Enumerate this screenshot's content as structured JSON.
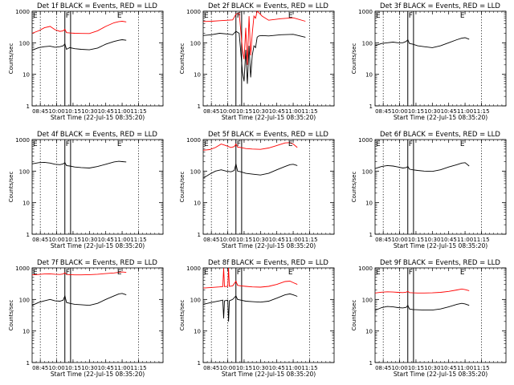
{
  "figure": {
    "ylabel": "Counts/sec",
    "xlabel": "Start Time (22-Jul-15 08:35:20)",
    "x_tick_labels": [
      "08:45",
      "10:00",
      "10:15",
      "10:30",
      "10:45",
      "11:00",
      "11:15"
    ],
    "y_tick_labels": [
      "1",
      "10",
      "100",
      "1000"
    ],
    "colors": {
      "events": "#000000",
      "lld": "#ff0000",
      "axes": "#000000"
    }
  },
  "chart_data": [
    {
      "type": "line",
      "title": "Det 1f BLACK = Events, RED = LLD",
      "xlabel": "Start Time (22-Jul-15 08:35:20)",
      "ylabel": "Counts/sec",
      "xlim": [
        0,
        160
      ],
      "ylim": [
        1,
        1000
      ],
      "yscale": "log",
      "x_ticks": [
        10,
        30,
        50,
        70,
        90,
        110,
        130
      ],
      "dotted_lines": [
        10,
        30,
        130
      ],
      "solid_lines": [
        40,
        47
      ],
      "markers": [
        {
          "label": "E",
          "x": 0
        },
        {
          "label": "F",
          "x": 40
        },
        {
          "label": "E",
          "x": 103
        }
      ],
      "series": [
        {
          "name": "Events",
          "color": "#000000",
          "x": [
            0,
            8,
            15,
            22,
            28,
            34,
            38,
            40,
            42,
            46,
            52,
            60,
            70,
            80,
            90,
            100,
            106,
            110,
            115
          ],
          "y": [
            58,
            70,
            75,
            78,
            72,
            75,
            80,
            92,
            62,
            70,
            65,
            62,
            60,
            68,
            90,
            110,
            120,
            125,
            120
          ]
        },
        {
          "name": "LLD",
          "color": "#ff0000",
          "x": [
            0,
            8,
            15,
            22,
            28,
            34,
            38,
            40,
            42,
            46,
            52,
            60,
            70,
            80,
            90,
            100,
            106,
            110,
            115
          ],
          "y": [
            200,
            240,
            300,
            330,
            260,
            230,
            240,
            270,
            210,
            205,
            200,
            198,
            196,
            240,
            330,
            430,
            470,
            480,
            460
          ]
        }
      ]
    },
    {
      "type": "line",
      "title": "Det 2f BLACK = Events, RED = LLD",
      "xlabel": "Start Time (22-Jul-15 08:35:20)",
      "ylabel": "Counts/sec",
      "xlim": [
        0,
        160
      ],
      "ylim": [
        1,
        1000
      ],
      "yscale": "log",
      "x_ticks": [
        10,
        30,
        50,
        70,
        90,
        110,
        130
      ],
      "dotted_lines": [
        10,
        30,
        130
      ],
      "solid_lines": [
        40,
        47
      ],
      "markers": [
        {
          "label": "E",
          "x": 0
        },
        {
          "label": "F",
          "x": 40
        },
        {
          "label": "E",
          "x": 103
        }
      ],
      "series": [
        {
          "name": "Events",
          "color": "#000000",
          "x": [
            0,
            10,
            20,
            30,
            36,
            40,
            44,
            48,
            50,
            52,
            54,
            56,
            58,
            60,
            62,
            64,
            66,
            68,
            72,
            80,
            95,
            110,
            125
          ],
          "y": [
            170,
            180,
            200,
            190,
            180,
            230,
            200,
            12,
            6,
            60,
            5,
            80,
            8,
            40,
            80,
            70,
            150,
            165,
            170,
            165,
            180,
            185,
            150
          ]
        },
        {
          "name": "LLD",
          "color": "#ff0000",
          "x": [
            0,
            10,
            20,
            30,
            36,
            40,
            44,
            48,
            50,
            52,
            54,
            56,
            58,
            60,
            62,
            64,
            66,
            68,
            72,
            80,
            95,
            110,
            125
          ],
          "y": [
            470,
            480,
            500,
            520,
            530,
            800,
            900,
            60,
            30,
            300,
            20,
            700,
            40,
            200,
            700,
            600,
            1000,
            900,
            700,
            520,
            580,
            620,
            480
          ]
        }
      ]
    },
    {
      "type": "line",
      "title": "Det 3f BLACK = Events, RED = LLD",
      "xlabel": "Start Time (22-Jul-15 08:35:20)",
      "ylabel": "Counts/sec",
      "xlim": [
        0,
        160
      ],
      "ylim": [
        1,
        1000
      ],
      "yscale": "log",
      "x_ticks": [
        10,
        30,
        50,
        70,
        90,
        110,
        130
      ],
      "dotted_lines": [
        10,
        30,
        130
      ],
      "solid_lines": [
        40,
        47
      ],
      "markers": [
        {
          "label": "E",
          "x": 0
        },
        {
          "label": "F",
          "x": 40
        },
        {
          "label": "E",
          "x": 103
        }
      ],
      "series": [
        {
          "name": "Events",
          "color": "#000000",
          "x": [
            0,
            8,
            15,
            22,
            28,
            34,
            38,
            40,
            42,
            46,
            52,
            60,
            70,
            80,
            90,
            100,
            106,
            110,
            115
          ],
          "y": [
            80,
            95,
            100,
            105,
            100,
            100,
            110,
            125,
            95,
            90,
            80,
            75,
            70,
            80,
            100,
            125,
            140,
            145,
            130
          ]
        }
      ]
    },
    {
      "type": "line",
      "title": "Det 4f BLACK = Events, RED = LLD",
      "xlabel": "Start Time (22-Jul-15 08:35:20)",
      "ylabel": "Counts/sec",
      "xlim": [
        0,
        160
      ],
      "ylim": [
        1,
        1000
      ],
      "yscale": "log",
      "x_ticks": [
        10,
        30,
        50,
        70,
        90,
        110,
        130
      ],
      "dotted_lines": [
        10,
        30,
        130
      ],
      "solid_lines": [
        40,
        47
      ],
      "markers": [
        {
          "label": "E",
          "x": 0
        },
        {
          "label": "F",
          "x": 40
        },
        {
          "label": "E",
          "x": 103
        }
      ],
      "series": [
        {
          "name": "Events",
          "color": "#000000",
          "x": [
            0,
            8,
            15,
            22,
            28,
            34,
            38,
            40,
            42,
            46,
            52,
            60,
            70,
            80,
            90,
            100,
            106,
            110,
            115
          ],
          "y": [
            170,
            185,
            190,
            180,
            165,
            160,
            170,
            185,
            150,
            145,
            135,
            130,
            125,
            140,
            165,
            195,
            205,
            200,
            195
          ]
        }
      ]
    },
    {
      "type": "line",
      "title": "Det 5f BLACK = Events, RED = LLD",
      "xlabel": "Start Time (22-Jul-15 08:35:20)",
      "ylabel": "Counts/sec",
      "xlim": [
        0,
        160
      ],
      "ylim": [
        1,
        1000
      ],
      "yscale": "log",
      "x_ticks": [
        10,
        30,
        50,
        70,
        90,
        110,
        130
      ],
      "dotted_lines": [
        10,
        30,
        130
      ],
      "solid_lines": [
        40,
        47
      ],
      "markers": [
        {
          "label": "E",
          "x": 0
        },
        {
          "label": "F",
          "x": 40
        },
        {
          "label": "E",
          "x": 103
        }
      ],
      "series": [
        {
          "name": "Events",
          "color": "#000000",
          "x": [
            0,
            8,
            15,
            22,
            28,
            34,
            38,
            40,
            42,
            46,
            52,
            60,
            70,
            80,
            90,
            100,
            106,
            110,
            115
          ],
          "y": [
            60,
            80,
            100,
            110,
            100,
            95,
            105,
            170,
            100,
            95,
            85,
            80,
            75,
            85,
            110,
            140,
            160,
            165,
            150
          ]
        },
        {
          "name": "LLD",
          "color": "#ff0000",
          "x": [
            0,
            8,
            15,
            22,
            28,
            34,
            38,
            40,
            42,
            46,
            52,
            60,
            70,
            80,
            90,
            100,
            106,
            110,
            115
          ],
          "y": [
            460,
            480,
            560,
            720,
            640,
            560,
            600,
            720,
            580,
            560,
            520,
            500,
            490,
            540,
            650,
            780,
            800,
            720,
            560
          ]
        }
      ]
    },
    {
      "type": "line",
      "title": "Det 6f BLACK = Events, RED = LLD",
      "xlabel": "Start Time (22-Jul-15 08:35:20)",
      "ylabel": "Counts/sec",
      "xlim": [
        0,
        160
      ],
      "ylim": [
        1,
        1000
      ],
      "yscale": "log",
      "x_ticks": [
        10,
        30,
        50,
        70,
        90,
        110,
        130
      ],
      "dotted_lines": [
        10,
        30,
        130
      ],
      "solid_lines": [
        40,
        47
      ],
      "markers": [
        {
          "label": "E",
          "x": 0
        },
        {
          "label": "F",
          "x": 40
        },
        {
          "label": "E",
          "x": 103
        }
      ],
      "series": [
        {
          "name": "Events",
          "color": "#000000",
          "x": [
            0,
            8,
            15,
            22,
            28,
            34,
            38,
            40,
            42,
            46,
            52,
            60,
            70,
            80,
            90,
            100,
            106,
            110,
            115
          ],
          "y": [
            120,
            140,
            150,
            145,
            135,
            125,
            130,
            140,
            115,
            110,
            105,
            100,
            98,
            110,
            135,
            160,
            180,
            185,
            145
          ]
        }
      ]
    },
    {
      "type": "line",
      "title": "Det 7f BLACK = Events, RED = LLD",
      "xlabel": "Start Time (22-Jul-15 08:35:20)",
      "ylabel": "Counts/sec",
      "xlim": [
        0,
        160
      ],
      "ylim": [
        1,
        1000
      ],
      "yscale": "log",
      "x_ticks": [
        10,
        30,
        50,
        70,
        90,
        110,
        130
      ],
      "dotted_lines": [
        10,
        30,
        130
      ],
      "solid_lines": [
        40,
        47
      ],
      "markers": [
        {
          "label": "E",
          "x": 0
        },
        {
          "label": "F",
          "x": 40
        },
        {
          "label": "E",
          "x": 103
        }
      ],
      "series": [
        {
          "name": "Events",
          "color": "#000000",
          "x": [
            0,
            8,
            15,
            22,
            28,
            34,
            38,
            40,
            42,
            46,
            52,
            60,
            70,
            80,
            90,
            100,
            106,
            110,
            115
          ],
          "y": [
            65,
            80,
            90,
            100,
            90,
            88,
            95,
            130,
            80,
            75,
            70,
            68,
            65,
            75,
            100,
            130,
            150,
            155,
            140
          ]
        },
        {
          "name": "LLD",
          "color": "#ff0000",
          "x": [
            0,
            8,
            15,
            22,
            28,
            34,
            38,
            40,
            42,
            46,
            52,
            60,
            70,
            80,
            90,
            100,
            106,
            110,
            115
          ],
          "y": [
            600,
            620,
            640,
            650,
            630,
            620,
            640,
            700,
            620,
            610,
            600,
            600,
            610,
            630,
            660,
            690,
            720,
            740,
            720
          ]
        }
      ]
    },
    {
      "type": "line",
      "title": "Det 8f BLACK = Events, RED = LLD",
      "xlabel": "Start Time (22-Jul-15 08:35:20)",
      "ylabel": "Counts/sec",
      "xlim": [
        0,
        160
      ],
      "ylim": [
        1,
        1000
      ],
      "yscale": "log",
      "x_ticks": [
        10,
        30,
        50,
        70,
        90,
        110,
        130
      ],
      "dotted_lines": [
        10,
        30,
        130
      ],
      "solid_lines": [
        40,
        47
      ],
      "markers": [
        {
          "label": "E",
          "x": 0
        },
        {
          "label": "F",
          "x": 40
        },
        {
          "label": "E",
          "x": 103
        }
      ],
      "series": [
        {
          "name": "Events",
          "color": "#000000",
          "x": [
            0,
            10,
            20,
            24,
            25,
            26,
            30,
            31,
            32,
            36,
            40,
            42,
            46,
            52,
            60,
            70,
            80,
            90,
            100,
            106,
            110,
            115
          ],
          "y": [
            70,
            80,
            90,
            95,
            25,
            90,
            95,
            20,
            90,
            100,
            130,
            100,
            95,
            88,
            85,
            82,
            88,
            110,
            140,
            150,
            140,
            125
          ]
        },
        {
          "name": "LLD",
          "color": "#ff0000",
          "x": [
            0,
            10,
            20,
            24,
            25,
            26,
            30,
            31,
            32,
            36,
            40,
            42,
            46,
            52,
            60,
            70,
            80,
            90,
            100,
            106,
            110,
            115
          ],
          "y": [
            230,
            240,
            250,
            255,
            1000,
            255,
            260,
            1000,
            260,
            270,
            380,
            280,
            270,
            260,
            250,
            245,
            260,
            300,
            370,
            380,
            340,
            300
          ]
        }
      ]
    },
    {
      "type": "line",
      "title": "Det 9f BLACK = Events, RED = LLD",
      "xlabel": "Start Time (22-Jul-15 08:35:20)",
      "ylabel": "Counts/sec",
      "xlim": [
        0,
        160
      ],
      "ylim": [
        1,
        1000
      ],
      "yscale": "log",
      "x_ticks": [
        10,
        30,
        50,
        70,
        90,
        110,
        130
      ],
      "dotted_lines": [
        10,
        30,
        130
      ],
      "solid_lines": [
        40,
        47
      ],
      "markers": [
        {
          "label": "E",
          "x": 0
        },
        {
          "label": "F",
          "x": 40
        },
        {
          "label": "E",
          "x": 103
        }
      ],
      "series": [
        {
          "name": "Events",
          "color": "#000000",
          "x": [
            0,
            8,
            15,
            22,
            28,
            34,
            38,
            40,
            42,
            46,
            52,
            60,
            70,
            80,
            90,
            100,
            106,
            110,
            115
          ],
          "y": [
            45,
            55,
            60,
            58,
            55,
            54,
            56,
            65,
            50,
            48,
            47,
            46,
            46,
            50,
            58,
            70,
            75,
            72,
            65
          ]
        },
        {
          "name": "LLD",
          "color": "#ff0000",
          "x": [
            0,
            8,
            15,
            22,
            28,
            34,
            38,
            40,
            42,
            46,
            52,
            60,
            70,
            80,
            90,
            100,
            106,
            110,
            115
          ],
          "y": [
            160,
            170,
            175,
            172,
            168,
            165,
            170,
            180,
            165,
            162,
            160,
            160,
            162,
            168,
            180,
            200,
            215,
            205,
            190
          ]
        }
      ]
    }
  ]
}
